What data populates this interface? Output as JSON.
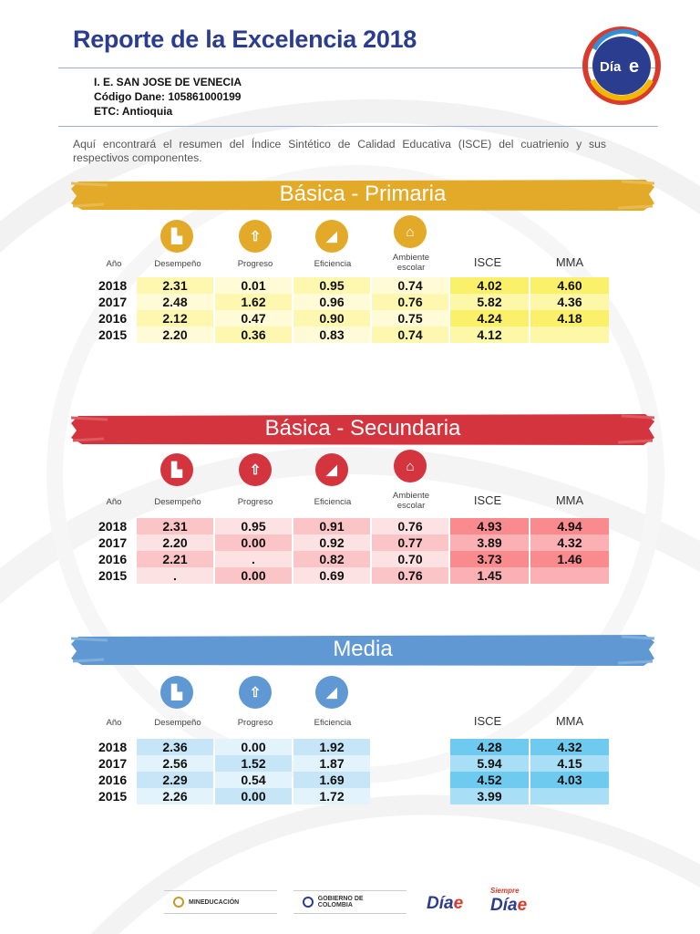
{
  "header": {
    "title": "Reporte de la Excelencia 2018",
    "school": "I. E. SAN JOSE DE VENECIA",
    "dane": "Código Dane: 105861000199",
    "etc": "ETC: Antioquia",
    "logo_text": "Día",
    "logo_e": "e",
    "intro": "Aquí encontrará el resumen del Índice Sintético de Calidad Educativa (ISCE) del cuatrienio y sus respectivos componentes."
  },
  "colors": {
    "primaria": "#e3aa2a",
    "secundaria": "#d4343d",
    "media": "#5f98d2",
    "title_blue": "#2b3d8f"
  },
  "headers": {
    "year": "Año",
    "desempeno": "Desempeño",
    "progreso": "Progreso",
    "eficiencia": "Eficiencia",
    "ambiente": "Ambiente escolar",
    "isce": "ISCE",
    "mma": "MMA"
  },
  "primaria": {
    "title": "Básica - Primaria",
    "rows": [
      {
        "year": "2018",
        "desempeno": "2.31",
        "progreso": "0.01",
        "eficiencia": "0.95",
        "ambiente": "0.74",
        "isce": "4.02",
        "mma": "4.60"
      },
      {
        "year": "2017",
        "desempeno": "2.48",
        "progreso": "1.62",
        "eficiencia": "0.96",
        "ambiente": "0.76",
        "isce": "5.82",
        "mma": "4.36"
      },
      {
        "year": "2016",
        "desempeno": "2.12",
        "progreso": "0.47",
        "eficiencia": "0.90",
        "ambiente": "0.75",
        "isce": "4.24",
        "mma": "4.18"
      },
      {
        "year": "2015",
        "desempeno": "2.20",
        "progreso": "0.36",
        "eficiencia": "0.83",
        "ambiente": "0.74",
        "isce": "4.12",
        "mma": ""
      }
    ]
  },
  "secundaria": {
    "title": "Básica - Secundaria",
    "rows": [
      {
        "year": "2018",
        "desempeno": "2.31",
        "progreso": "0.95",
        "eficiencia": "0.91",
        "ambiente": "0.76",
        "isce": "4.93",
        "mma": "4.94"
      },
      {
        "year": "2017",
        "desempeno": "2.20",
        "progreso": "0.00",
        "eficiencia": "0.92",
        "ambiente": "0.77",
        "isce": "3.89",
        "mma": "4.32"
      },
      {
        "year": "2016",
        "desempeno": "2.21",
        "progreso": ".",
        "eficiencia": "0.82",
        "ambiente": "0.70",
        "isce": "3.73",
        "mma": "1.46"
      },
      {
        "year": "2015",
        "desempeno": ".",
        "progreso": "0.00",
        "eficiencia": "0.69",
        "ambiente": "0.76",
        "isce": "1.45",
        "mma": ""
      }
    ]
  },
  "media": {
    "title": "Media",
    "rows": [
      {
        "year": "2018",
        "desempeno": "2.36",
        "progreso": "0.00",
        "eficiencia": "1.92",
        "isce": "4.28",
        "mma": "4.32"
      },
      {
        "year": "2017",
        "desempeno": "2.56",
        "progreso": "1.52",
        "eficiencia": "1.87",
        "isce": "5.94",
        "mma": "4.15"
      },
      {
        "year": "2016",
        "desempeno": "2.29",
        "progreso": "0.54",
        "eficiencia": "1.69",
        "isce": "4.52",
        "mma": "4.03"
      },
      {
        "year": "2015",
        "desempeno": "2.26",
        "progreso": "0.00",
        "eficiencia": "1.72",
        "isce": "3.99",
        "mma": ""
      }
    ]
  },
  "footer": {
    "mineducacion": "MINEDUCACIÓN",
    "gobierno": "GOBIERNO DE COLOMBIA",
    "dia1": "Día",
    "dia1_e": "e",
    "siempre": "Siempre",
    "dia2": "Día",
    "dia2_e": "e"
  }
}
